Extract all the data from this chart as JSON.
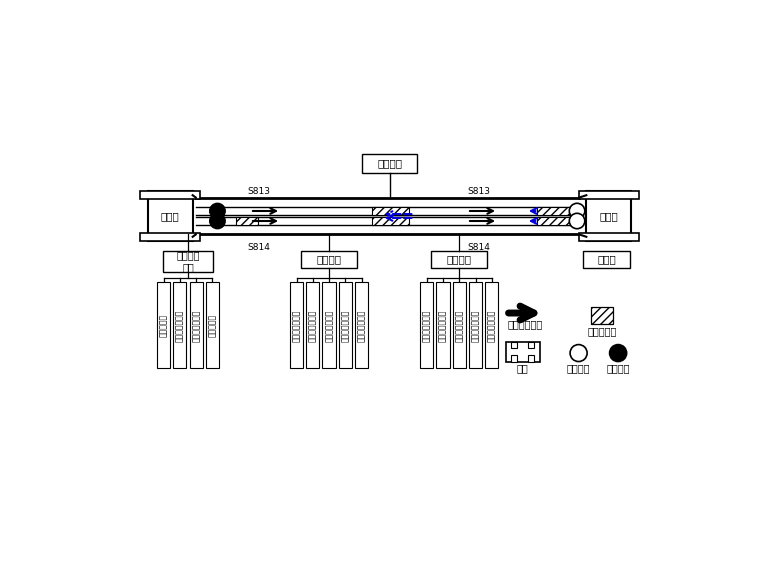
{
  "bg_color": "#ffffff",
  "line_color": "#000000",
  "blue_color": "#0000dd",
  "shaft_label": "施工座井",
  "station_left_label": "镇龙站",
  "station_right_label": "中新站",
  "zone1_label": "明挜车站\n工区",
  "zone2_label": "盾构工区",
  "zone3_label": "矿山工区",
  "zone4_label": "中新站",
  "left_teams": [
    "土方作业队",
    "围护结构作业队",
    "防水施工作业队",
    "结构作业队"
  ],
  "shield_teams": [
    "盾构施工作业队",
    "盾构配合作业队",
    "中间座井作业队",
    "盾构施工作业队",
    "盾构配合作业队"
  ],
  "mountain_teams": [
    "矿山施工作业队",
    "矿山配合作业队",
    "施工座井作业队",
    "矿山施工作业队",
    "矿山配合作业队"
  ],
  "legend_arrow_label": "盾构掘进方向",
  "legend_hatch_label": "矿山法隙道",
  "legend_station_label": "车站",
  "legend_recv_label": "盾构接收",
  "legend_launch_label": "盾构始发",
  "s813": "S813",
  "s814": "S814"
}
